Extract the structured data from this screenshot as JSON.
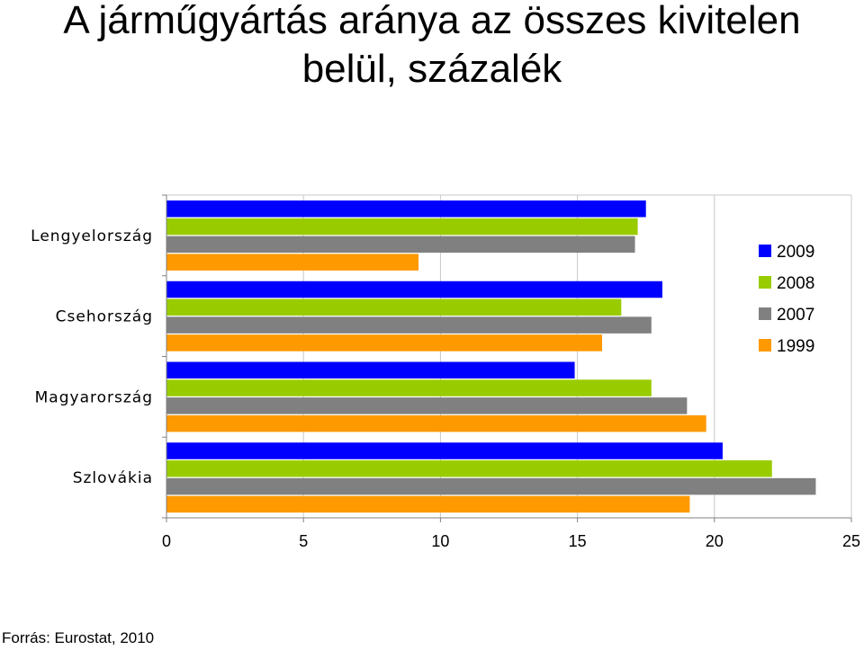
{
  "title_line1": "A járműgyártás aránya az összes kivitelen",
  "title_line2": "belül, százalék",
  "source": "Forrás: Eurostat, 2010",
  "chart_data": {
    "type": "bar",
    "orientation": "horizontal",
    "categories": [
      "Lengyelország",
      "Csehország",
      "Magyarország",
      "Szlovákia"
    ],
    "series": [
      {
        "name": "2009",
        "color": "#0000ff",
        "values": [
          17.5,
          18.1,
          14.9,
          20.3
        ]
      },
      {
        "name": "2008",
        "color": "#99cc00",
        "values": [
          17.2,
          16.6,
          17.7,
          22.1
        ]
      },
      {
        "name": "2007",
        "color": "#808080",
        "values": [
          17.1,
          17.7,
          19.0,
          23.7
        ]
      },
      {
        "name": "1999",
        "color": "#ff9900",
        "values": [
          9.2,
          15.9,
          19.7,
          19.1
        ]
      }
    ],
    "xlim": [
      0,
      25
    ],
    "xticks": [
      "0",
      "5",
      "10",
      "15",
      "20",
      "25"
    ],
    "grid": true,
    "legend_position": "right"
  }
}
